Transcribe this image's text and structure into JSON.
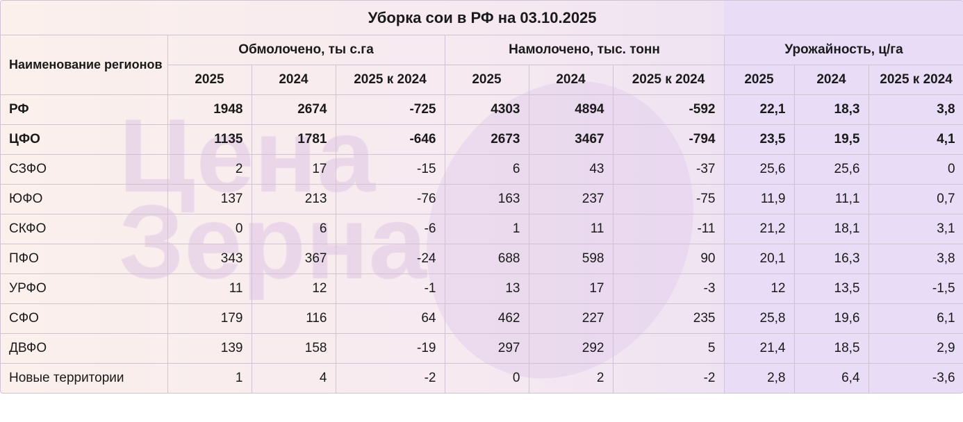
{
  "title": "Уборка сои в РФ на 03.10.2025",
  "region_header": "Наименование регионов",
  "groups": [
    "Обмолочено, ты с.га",
    "Намолочено, тыс. тонн",
    "Урожайность, ц/га"
  ],
  "subheaders": [
    "2025",
    "2024",
    "2025 к 2024"
  ],
  "watermark": "Цена Зерна",
  "rows": [
    {
      "region": "РФ",
      "bold": true,
      "values": [
        "1948",
        "2674",
        "-725",
        "4303",
        "4894",
        "-592",
        "22,1",
        "18,3",
        "3,8"
      ]
    },
    {
      "region": "ЦФО",
      "bold": true,
      "values": [
        "1135",
        "1781",
        "-646",
        "2673",
        "3467",
        "-794",
        "23,5",
        "19,5",
        "4,1"
      ]
    },
    {
      "region": "СЗФО",
      "bold": false,
      "values": [
        "2",
        "17",
        "-15",
        "6",
        "43",
        "-37",
        "25,6",
        "25,6",
        "0"
      ]
    },
    {
      "region": "ЮФО",
      "bold": false,
      "values": [
        "137",
        "213",
        "-76",
        "163",
        "237",
        "-75",
        "11,9",
        "11,1",
        "0,7"
      ]
    },
    {
      "region": "СКФО",
      "bold": false,
      "values": [
        "0",
        "6",
        "-6",
        "1",
        "11",
        "-11",
        "21,2",
        "18,1",
        "3,1"
      ]
    },
    {
      "region": "ПФО",
      "bold": false,
      "values": [
        "343",
        "367",
        "-24",
        "688",
        "598",
        "90",
        "20,1",
        "16,3",
        "3,8"
      ]
    },
    {
      "region": "УРФО",
      "bold": false,
      "values": [
        "11",
        "12",
        "-1",
        "13",
        "17",
        "-3",
        "12",
        "13,5",
        "-1,5"
      ]
    },
    {
      "region": "СФО",
      "bold": false,
      "values": [
        "179",
        "116",
        "64",
        "462",
        "227",
        "235",
        "25,8",
        "19,6",
        "6,1"
      ]
    },
    {
      "region": "ДВФО",
      "bold": false,
      "values": [
        "139",
        "158",
        "-19",
        "297",
        "292",
        "5",
        "21,4",
        "18,5",
        "2,9"
      ]
    },
    {
      "region": "Новые территории",
      "bold": false,
      "values": [
        "1",
        "4",
        "-2",
        "0",
        "2",
        "-2",
        "2,8",
        "6,4",
        "-3,6"
      ]
    }
  ]
}
